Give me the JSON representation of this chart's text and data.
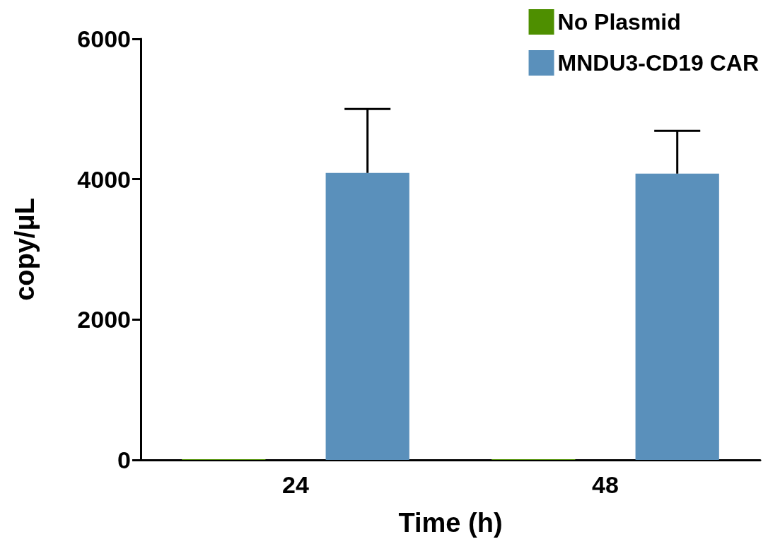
{
  "chart_data": {
    "type": "bar",
    "xlabel": "Time (h)",
    "ylabel": "copy/μL",
    "categories": [
      "24",
      "48"
    ],
    "series": [
      {
        "name": "No Plasmid",
        "color": "#4e8f00",
        "values": [
          10,
          10
        ]
      },
      {
        "name": "MNDU3-CD19 CAR",
        "color": "#5a90bb",
        "values": [
          4090,
          4080
        ],
        "errors": [
          [
            4090,
            5000
          ],
          [
            4080,
            4690
          ]
        ]
      }
    ],
    "ylim": [
      0,
      6000
    ],
    "yticks": [
      0,
      {
        "value": 2000,
        "label": "2000"
      },
      {
        "value": 4000,
        "label": "4000"
      },
      {
        "value": 6000,
        "label": "6000"
      }
    ],
    "grid": false,
    "legend": "top right"
  }
}
